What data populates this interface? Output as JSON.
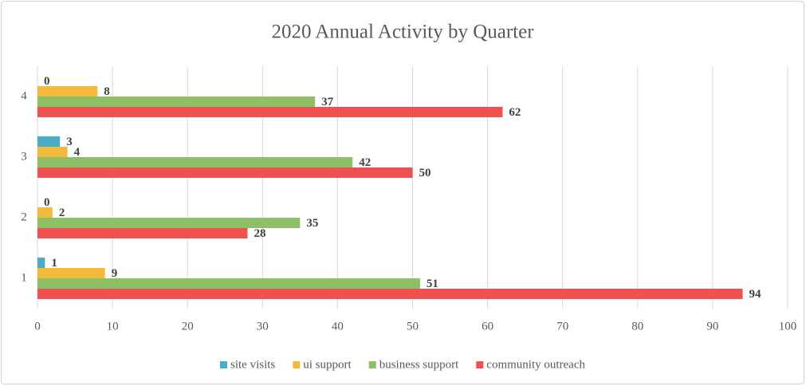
{
  "chart_data": {
    "type": "bar",
    "orientation": "horizontal",
    "title": "2020 Annual Activity by Quarter",
    "categories": [
      "1",
      "2",
      "3",
      "4"
    ],
    "series": [
      {
        "name": "site visits",
        "color": "#4bacc6",
        "values": [
          1,
          0,
          3,
          0
        ]
      },
      {
        "name": "ui support",
        "color": "#f2b93b",
        "values": [
          9,
          2,
          4,
          8
        ]
      },
      {
        "name": "business support",
        "color": "#8dbf67",
        "values": [
          51,
          35,
          42,
          37
        ]
      },
      {
        "name": "community outreach",
        "color": "#f0504f",
        "values": [
          94,
          28,
          50,
          62
        ]
      }
    ],
    "xlim": [
      0,
      100
    ],
    "xticks": [
      0,
      10,
      20,
      30,
      40,
      50,
      60,
      70,
      80,
      90,
      100
    ],
    "grid": true,
    "legend": "bottom"
  }
}
